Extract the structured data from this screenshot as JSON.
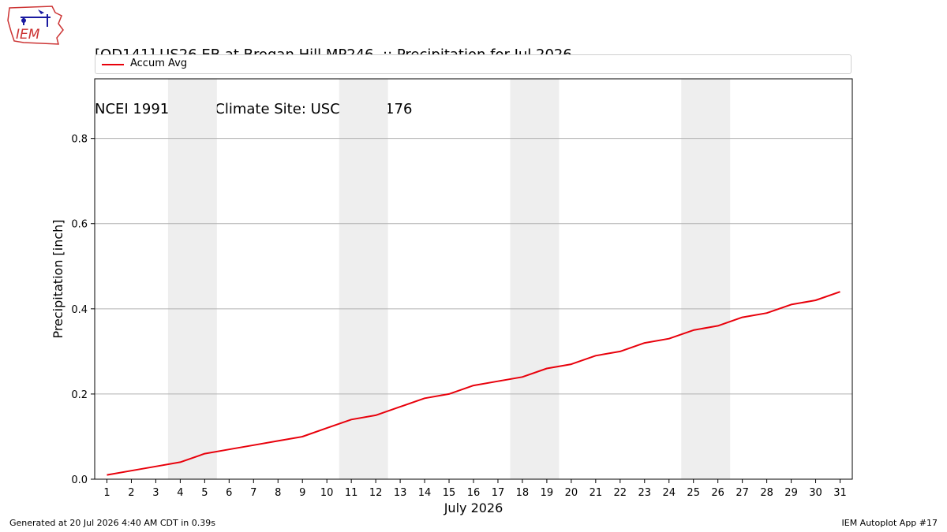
{
  "header": {
    "title_line1": "[OD141] US26 EB at Brogan Hill MP246  :: Precipitation for Jul 2026",
    "title_line2": "NCEI 1991-2020 Climate Site: USC00359176",
    "logo_text": "IEM"
  },
  "footer": {
    "generated": "Generated at 20 Jul 2026 4:40 AM CDT in 0.39s",
    "app": "IEM Autoplot App #17"
  },
  "colors": {
    "line": "#e8000b",
    "weekend_band": "#eeeeee",
    "grid": "#b0b0b0"
  },
  "chart_data": {
    "type": "line",
    "title": "[OD141] US26 EB at Brogan Hill MP246  :: Precipitation for Jul 2026",
    "subtitle": "NCEI 1991-2020 Climate Site: USC00359176",
    "xlabel": "July 2026",
    "ylabel": "Precipitation [inch]",
    "xlim": [
      0.5,
      31.5
    ],
    "ylim": [
      0,
      0.94
    ],
    "yticks": [
      0.0,
      0.2,
      0.4,
      0.6,
      0.8
    ],
    "ytick_labels": [
      "0.0",
      "0.2",
      "0.4",
      "0.6",
      "0.8"
    ],
    "x": [
      1,
      2,
      3,
      4,
      5,
      6,
      7,
      8,
      9,
      10,
      11,
      12,
      13,
      14,
      15,
      16,
      17,
      18,
      19,
      20,
      21,
      22,
      23,
      24,
      25,
      26,
      27,
      28,
      29,
      30,
      31
    ],
    "xtick_labels": [
      "1",
      "2",
      "3",
      "4",
      "5",
      "6",
      "7",
      "8",
      "9",
      "10",
      "11",
      "12",
      "13",
      "14",
      "15",
      "16",
      "17",
      "18",
      "19",
      "20",
      "21",
      "22",
      "23",
      "24",
      "25",
      "26",
      "27",
      "28",
      "29",
      "30",
      "31"
    ],
    "grid": "horizontal",
    "legend_position": "top",
    "weekend_bands": [
      [
        4,
        5
      ],
      [
        11,
        12
      ],
      [
        18,
        19
      ],
      [
        25,
        26
      ]
    ],
    "series": [
      {
        "name": "Accum Avg",
        "color": "#e8000b",
        "values": [
          0.01,
          0.02,
          0.03,
          0.04,
          0.06,
          0.07,
          0.08,
          0.09,
          0.1,
          0.12,
          0.14,
          0.15,
          0.17,
          0.19,
          0.2,
          0.22,
          0.23,
          0.24,
          0.26,
          0.27,
          0.29,
          0.3,
          0.32,
          0.33,
          0.35,
          0.36,
          0.38,
          0.39,
          0.41,
          0.42,
          0.44
        ]
      }
    ]
  }
}
